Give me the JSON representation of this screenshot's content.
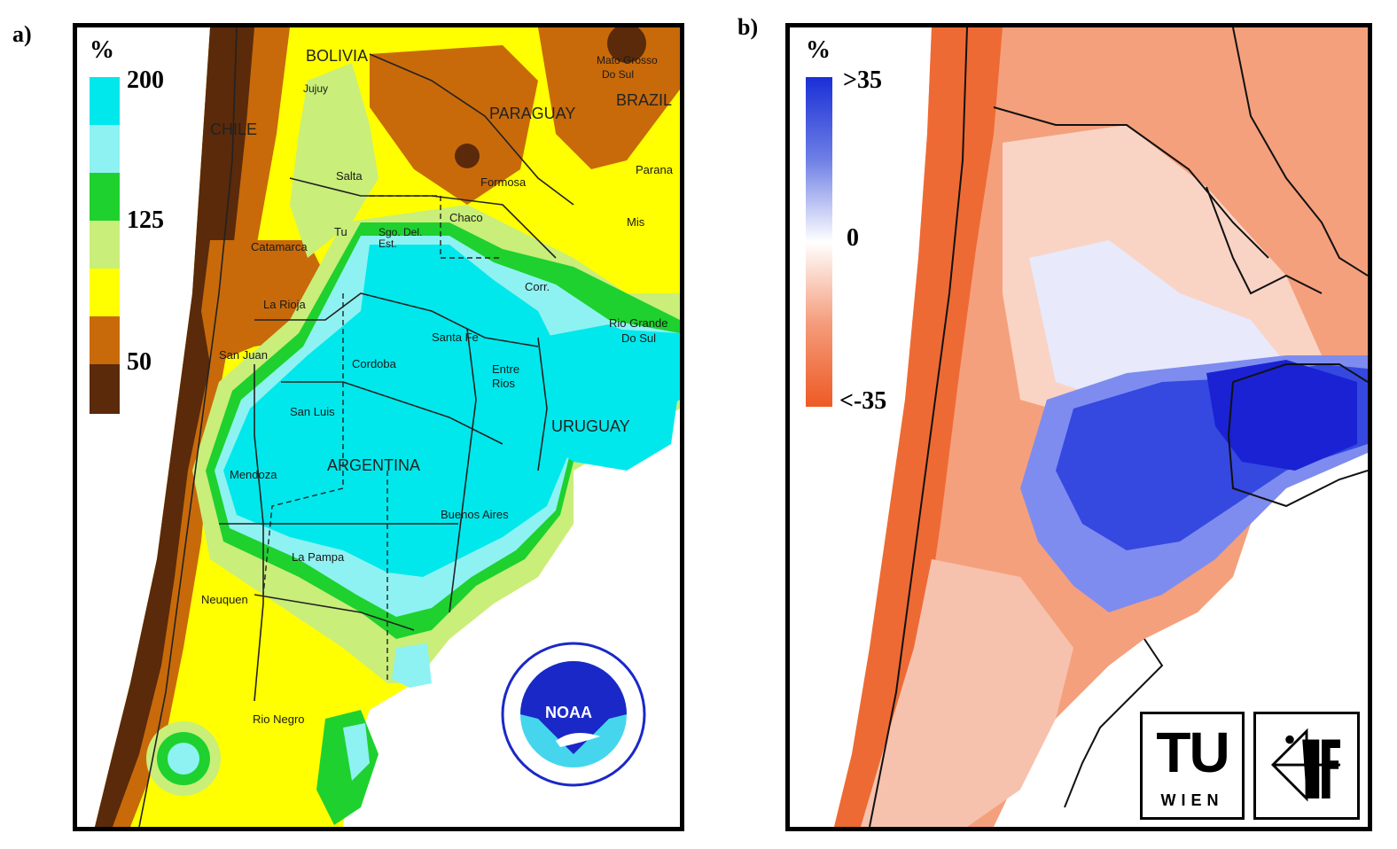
{
  "panels": {
    "a": {
      "label": "a)",
      "legend": {
        "unit": "%",
        "ticks": [
          "200",
          "125",
          "50"
        ],
        "colors": [
          "#00e8ec",
          "#8ef2f2",
          "#1ed12e",
          "#c9ee7a",
          "#ffff00",
          "#c86a0a",
          "#5a2a0a"
        ]
      },
      "places": {
        "bolivia": "BOLIVIA",
        "chile": "CHILE",
        "paraguay": "PARAGUAY",
        "brazil": "BRAZIL",
        "mato_grosso": "Mato Grosso",
        "do_sul": "Do Sul",
        "jujuy": "Jujuy",
        "salta": "Salta",
        "formosa": "Formosa",
        "chaco": "Chaco",
        "parana": "Parana",
        "tu": "Tu",
        "sgo_del_est": "Sgo. Del. Est.",
        "misiones": "Mis",
        "catamarca": "Catamarca",
        "corr": "Corr.",
        "la_rioja": "La Rioja",
        "santa_fe": "Santa Fe",
        "rio_grande": "Rio Grande",
        "do_sul2": "Do Sul",
        "san_juan": "San Juan",
        "cordoba": "Cordoba",
        "entre_rios": "Entre Rios",
        "san_luis": "San Luis",
        "uruguay": "URUGUAY",
        "mendoza": "Mendoza",
        "argentina": "ARGENTINA",
        "buenos_aires": "Buenos Aires",
        "la_pampa": "La Pampa",
        "neuquen": "Neuquen",
        "rio_negro": "Rio Negro",
        "noaa": "NOAA"
      }
    },
    "b": {
      "label": "b)",
      "legend": {
        "unit": "%",
        "ticks": [
          ">35",
          "0",
          "<-35"
        ],
        "colors": [
          "#1a2fd6",
          "#ffffff",
          "#ee5a24"
        ]
      },
      "logos": {
        "tu": "TU",
        "wien": "WIEN",
        "ipf": "ipf"
      }
    }
  }
}
